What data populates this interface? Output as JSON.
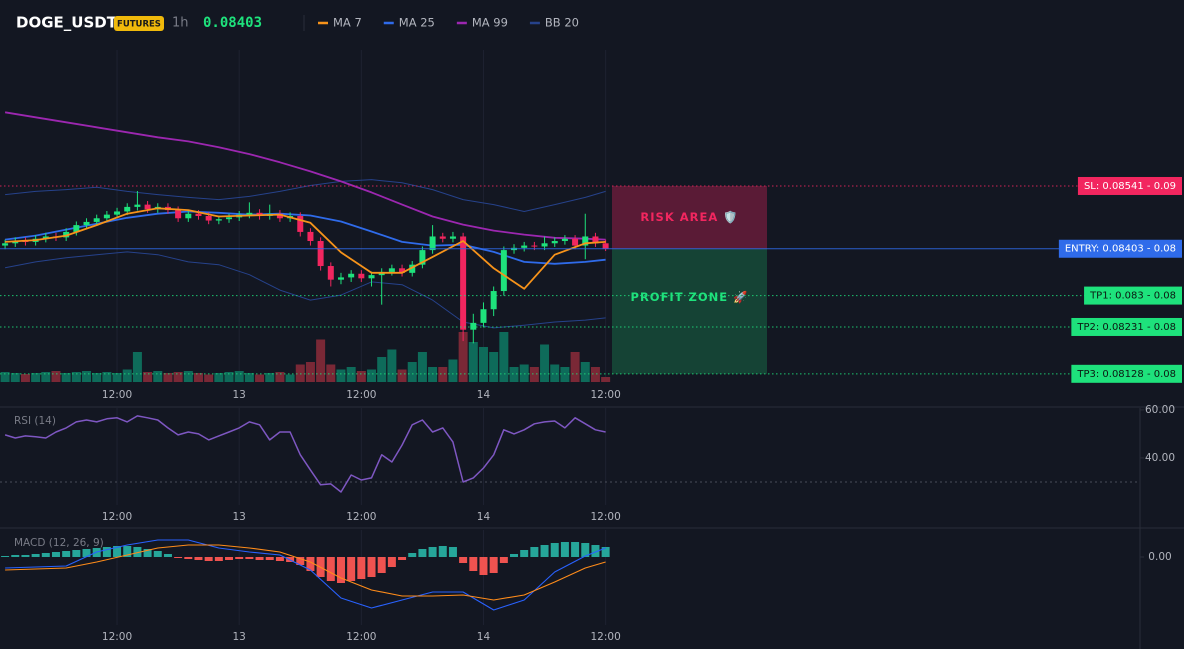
{
  "header": {
    "symbol": "DOGE_USDT",
    "badge": "FUTURES",
    "interval": "1h",
    "price": "0.08403"
  },
  "chart_data": [
    {
      "type": "candlestick",
      "x": [
        -23,
        -22,
        -21,
        -20,
        -19,
        -18,
        -17,
        -16,
        -15,
        -14,
        -13,
        -12,
        -11,
        -10,
        -9,
        -8,
        -7,
        -6,
        -5,
        -4,
        -3,
        -2,
        -1,
        0,
        1,
        2,
        3,
        4,
        5,
        6,
        7,
        8,
        9,
        10,
        11,
        12,
        13,
        14,
        15,
        16,
        17,
        18,
        19,
        20,
        21,
        22,
        23,
        24,
        25,
        26,
        27,
        28,
        29,
        30,
        31,
        32,
        33,
        34,
        35,
        36
      ],
      "open": [
        0.0841,
        0.08415,
        0.0842,
        0.08418,
        0.08425,
        0.0843,
        0.08428,
        0.0844,
        0.08455,
        0.08462,
        0.0847,
        0.08478,
        0.08485,
        0.08495,
        0.085,
        0.0849,
        0.08495,
        0.08488,
        0.0847,
        0.0848,
        0.08475,
        0.08465,
        0.08468,
        0.08472,
        0.08478,
        0.08482,
        0.08475,
        0.0848,
        0.0847,
        0.08475,
        0.0844,
        0.0842,
        0.08365,
        0.08335,
        0.0834,
        0.08348,
        0.08338,
        0.08345,
        0.08352,
        0.0836,
        0.0835,
        0.08368,
        0.084,
        0.0843,
        0.08425,
        0.0843,
        0.08225,
        0.0824,
        0.0827,
        0.0831,
        0.084,
        0.08405,
        0.0841,
        0.08408,
        0.08415,
        0.0842,
        0.08425,
        0.0841,
        0.0843,
        0.08415
      ],
      "high": [
        0.08423,
        0.08428,
        0.08428,
        0.08433,
        0.08438,
        0.08438,
        0.08448,
        0.08463,
        0.0847,
        0.08478,
        0.08486,
        0.08493,
        0.08503,
        0.0853,
        0.08508,
        0.08503,
        0.08503,
        0.08496,
        0.08488,
        0.08488,
        0.08483,
        0.08476,
        0.0848,
        0.08486,
        0.08505,
        0.0849,
        0.085,
        0.08488,
        0.08483,
        0.08483,
        0.08448,
        0.08428,
        0.08373,
        0.0835,
        0.08356,
        0.08356,
        0.08353,
        0.0836,
        0.08368,
        0.08368,
        0.08376,
        0.08408,
        0.08455,
        0.08438,
        0.0844,
        0.08438,
        0.0826,
        0.08285,
        0.0832,
        0.08408,
        0.08413,
        0.08418,
        0.08418,
        0.0843,
        0.08428,
        0.08433,
        0.08433,
        0.0848,
        0.08438,
        0.08423
      ],
      "low": [
        0.08402,
        0.08407,
        0.0841,
        0.0841,
        0.08417,
        0.0842,
        0.0842,
        0.08432,
        0.08447,
        0.08454,
        0.08462,
        0.0847,
        0.08477,
        0.08487,
        0.08482,
        0.08482,
        0.0848,
        0.08462,
        0.08462,
        0.08467,
        0.08457,
        0.08457,
        0.0846,
        0.08464,
        0.0847,
        0.08467,
        0.08467,
        0.08462,
        0.08462,
        0.0843,
        0.0841,
        0.08355,
        0.0832,
        0.08325,
        0.0833,
        0.0833,
        0.0832,
        0.0828,
        0.08344,
        0.08342,
        0.08342,
        0.0836,
        0.08392,
        0.08417,
        0.08417,
        0.082,
        0.08195,
        0.0823,
        0.08255,
        0.083,
        0.08392,
        0.08397,
        0.084,
        0.084,
        0.08407,
        0.08412,
        0.08402,
        0.0838,
        0.08407,
        0.08398
      ],
      "close": [
        0.08415,
        0.0842,
        0.08418,
        0.08425,
        0.0843,
        0.08428,
        0.0844,
        0.08455,
        0.08462,
        0.0847,
        0.08478,
        0.08485,
        0.08495,
        0.085,
        0.0849,
        0.08495,
        0.08488,
        0.0847,
        0.0848,
        0.08475,
        0.08465,
        0.08468,
        0.08472,
        0.08478,
        0.08482,
        0.08475,
        0.0848,
        0.0847,
        0.08475,
        0.0844,
        0.0842,
        0.08365,
        0.08335,
        0.0834,
        0.08348,
        0.08338,
        0.08345,
        0.08352,
        0.0836,
        0.0835,
        0.08368,
        0.084,
        0.0843,
        0.08425,
        0.0843,
        0.08225,
        0.0824,
        0.0827,
        0.0831,
        0.084,
        0.08405,
        0.0841,
        0.08408,
        0.08415,
        0.0842,
        0.08425,
        0.0841,
        0.0843,
        0.08415,
        0.08403
      ],
      "up_color": "#1ee27c",
      "down_color": "#f2265f",
      "volume": {
        "values": [
          20,
          18,
          16,
          18,
          20,
          22,
          18,
          20,
          22,
          18,
          20,
          18,
          25,
          60,
          20,
          22,
          18,
          20,
          22,
          18,
          15,
          18,
          20,
          22,
          18,
          15,
          18,
          20,
          15,
          35,
          40,
          85,
          35,
          25,
          30,
          22,
          25,
          50,
          65,
          25,
          40,
          60,
          30,
          30,
          45,
          100,
          80,
          70,
          60,
          100,
          30,
          35,
          30,
          75,
          35,
          30,
          60,
          40,
          30,
          10
        ],
        "ylim": [
          0,
          100
        ],
        "up_color": "#0e6b5a",
        "down_color": "#7a2836"
      },
      "xlim": [
        -23.5,
        88.5
      ],
      "ylim": [
        0.0811,
        0.0884
      ],
      "xticks": [
        {
          "value": -12,
          "label": "12:00"
        },
        {
          "value": 0,
          "label": "13"
        },
        {
          "value": 12,
          "label": "12:00"
        },
        {
          "value": 24,
          "label": "14"
        },
        {
          "value": 36,
          "label": "12:00"
        }
      ],
      "series": [
        {
          "name": "MA 7",
          "color": "#f7931a",
          "x": [
            -23,
            -20,
            -17,
            -14,
            -11,
            -8,
            -5,
            -2,
            1,
            4,
            7,
            10,
            13,
            16,
            19,
            22,
            25,
            28,
            31,
            34,
            36
          ],
          "values": [
            0.08418,
            0.08422,
            0.08432,
            0.08455,
            0.0848,
            0.08492,
            0.08488,
            0.08474,
            0.08476,
            0.08478,
            0.0846,
            0.08395,
            0.0835,
            0.0835,
            0.08385,
            0.0842,
            0.0836,
            0.08315,
            0.0839,
            0.08415,
            0.08418
          ]
        },
        {
          "name": "MA 25",
          "color": "#2f6bea",
          "x": [
            -23,
            -20,
            -17,
            -14,
            -11,
            -8,
            -5,
            -2,
            1,
            4,
            7,
            10,
            13,
            16,
            19,
            22,
            25,
            28,
            31,
            34,
            36
          ],
          "values": [
            0.08423,
            0.08432,
            0.08445,
            0.08458,
            0.08471,
            0.0848,
            0.08485,
            0.08482,
            0.08478,
            0.0848,
            0.08476,
            0.08463,
            0.08441,
            0.08418,
            0.0841,
            0.08412,
            0.08396,
            0.08374,
            0.0837,
            0.08374,
            0.08379
          ]
        },
        {
          "name": "MA 99",
          "color": "#9c27b0",
          "x": [
            -23,
            -20,
            -17,
            -14,
            -11,
            -8,
            -5,
            -2,
            1,
            4,
            7,
            10,
            13,
            16,
            19,
            22,
            25,
            28,
            31,
            34,
            36
          ],
          "values": [
            0.08703,
            0.08692,
            0.08681,
            0.0867,
            0.08659,
            0.08648,
            0.08639,
            0.08626,
            0.08611,
            0.08593,
            0.08573,
            0.08551,
            0.08527,
            0.085,
            0.08474,
            0.08456,
            0.08443,
            0.08434,
            0.08427,
            0.08425,
            0.08423
          ]
        }
      ],
      "bands": [
        {
          "name": "BB 20",
          "color": "#26428b",
          "x": [
            -23,
            -20,
            -17,
            -14,
            -11,
            -8,
            -5,
            -2,
            1,
            4,
            7,
            10,
            13,
            16,
            19,
            22,
            25,
            28,
            31,
            34,
            36
          ],
          "upper": [
            0.08522,
            0.08529,
            0.08533,
            0.08538,
            0.08529,
            0.08522,
            0.08516,
            0.08511,
            0.08518,
            0.08529,
            0.08542,
            0.08551,
            0.08555,
            0.08548,
            0.08533,
            0.08511,
            0.085,
            0.08485,
            0.085,
            0.08516,
            0.08529
          ],
          "lower": [
            0.08361,
            0.08374,
            0.08383,
            0.0839,
            0.08396,
            0.0839,
            0.08374,
            0.08368,
            0.08346,
            0.08312,
            0.0829,
            0.08301,
            0.0833,
            0.08324,
            0.0829,
            0.08242,
            0.08229,
            0.08235,
            0.08242,
            0.08246,
            0.08251
          ]
        }
      ],
      "levels": [
        {
          "label": "SL: 0.08541 - 0.09",
          "value": 0.08541,
          "color": "#f2265f",
          "text_color": "#ffffff"
        },
        {
          "label": "ENTRY: 0.08403 - 0.08",
          "value": 0.08403,
          "color": "#2f6bea",
          "text_color": "#ffffff"
        },
        {
          "label": "TP1: 0.083 - 0.08",
          "value": 0.083,
          "color": "#1ee27c",
          "text_color": "#0b1a12"
        },
        {
          "label": "TP2: 0.08231 - 0.08",
          "value": 0.08231,
          "color": "#1ee27c",
          "text_color": "#0b1a12"
        },
        {
          "label": "TP3: 0.08128 - 0.08",
          "value": 0.08128,
          "color": "#1ee27c",
          "text_color": "#0b1a12"
        }
      ],
      "zones": [
        {
          "label": "RISK AREA 🛡️",
          "color": "#f2265f"
        },
        {
          "label": "PROFIT ZONE 🚀",
          "color": "#1ee27c"
        }
      ]
    },
    {
      "type": "line",
      "title": "RSI (14)",
      "x": [
        -23,
        -22,
        -21,
        -20,
        -19,
        -18,
        -17,
        -16,
        -15,
        -14,
        -13,
        -12,
        -11,
        -10,
        -9,
        -8,
        -7,
        -6,
        -5,
        -4,
        -3,
        -2,
        -1,
        0,
        1,
        2,
        3,
        4,
        5,
        6,
        7,
        8,
        9,
        10,
        11,
        12,
        13,
        14,
        15,
        16,
        17,
        18,
        19,
        20,
        21,
        22,
        23,
        24,
        25,
        26,
        27,
        28,
        29,
        30,
        31,
        32,
        33,
        34,
        35,
        36
      ],
      "values": [
        49.6,
        48.3,
        49.2,
        48.8,
        48.3,
        50.8,
        52.5,
        55.0,
        55.8,
        55.0,
        56.3,
        56.7,
        55.0,
        57.5,
        56.7,
        55.8,
        52.5,
        49.6,
        50.8,
        50.0,
        47.5,
        49.2,
        50.8,
        52.5,
        55.0,
        53.8,
        47.5,
        50.8,
        50.8,
        41.3,
        35.0,
        28.8,
        29.2,
        25.8,
        32.9,
        30.8,
        31.7,
        41.3,
        38.3,
        45.4,
        53.8,
        55.8,
        50.8,
        52.5,
        46.7,
        30.0,
        31.7,
        35.8,
        41.3,
        51.7,
        50.0,
        51.7,
        54.2,
        55.0,
        55.4,
        52.5,
        56.7,
        54.2,
        51.7,
        50.8
      ],
      "color": "#7e57c2",
      "hlines": [
        30
      ],
      "xlim": [
        -23.5,
        88.5
      ],
      "ylim": [
        20.4,
        60.8
      ],
      "xticks": [
        {
          "value": -12,
          "label": "12:00"
        },
        {
          "value": 0,
          "label": "13"
        },
        {
          "value": 12,
          "label": "12:00"
        },
        {
          "value": 24,
          "label": "14"
        },
        {
          "value": 36,
          "label": "12:00"
        }
      ],
      "yticks": [
        {
          "value": 60,
          "label": "60.00"
        },
        {
          "value": 40,
          "label": "40.00"
        }
      ]
    },
    {
      "type": "macd",
      "title": "MACD (12, 26, 9)",
      "x": [
        -23,
        -22,
        -21,
        -20,
        -19,
        -18,
        -17,
        -16,
        -15,
        -14,
        -13,
        -12,
        -11,
        -10,
        -9,
        -8,
        -7,
        -6,
        -5,
        -4,
        -3,
        -2,
        -1,
        0,
        1,
        2,
        3,
        4,
        5,
        6,
        7,
        8,
        9,
        10,
        11,
        12,
        13,
        14,
        15,
        16,
        17,
        18,
        19,
        20,
        21,
        22,
        23,
        24,
        25,
        26,
        27,
        28,
        29,
        30,
        31,
        32,
        33,
        34,
        35,
        36
      ],
      "histogram": [
        1e-05,
        2e-05,
        2e-05,
        3e-05,
        4e-05,
        5e-05,
        6e-05,
        7e-05,
        8e-05,
        9e-05,
        0.0001,
        0.00011,
        0.00011,
        0.0001,
        8e-05,
        6e-05,
        3e-05,
        -1e-05,
        -2e-05,
        -3e-05,
        -4e-05,
        -4e-05,
        -3e-05,
        -2e-05,
        -2e-05,
        -3e-05,
        -3e-05,
        -4e-05,
        -5e-05,
        -8e-05,
        -0.00014,
        -0.0002,
        -0.00024,
        -0.00026,
        -0.00024,
        -0.00022,
        -0.0002,
        -0.00016,
        -0.0001,
        -3e-05,
        4e-05,
        8e-05,
        0.0001,
        0.00011,
        0.0001,
        -6e-05,
        -0.00014,
        -0.00018,
        -0.00016,
        -6e-05,
        3e-05,
        7e-05,
        0.0001,
        0.00012,
        0.00014,
        0.00015,
        0.00015,
        0.00014,
        0.00012,
        0.0001
      ],
      "up_color": "#26a69a",
      "down_color": "#ef5350",
      "series": [
        {
          "color": "#2962ff",
          "x": [
            -23,
            -20,
            -17,
            -14,
            -11,
            -8,
            -5,
            -2,
            1,
            4,
            7,
            10,
            13,
            16,
            19,
            22,
            25,
            28,
            31,
            34,
            36
          ],
          "values": [
            -0.00011,
            -0.0001,
            -9e-05,
            5e-05,
            0.00012,
            0.00017,
            0.00017,
            9e-05,
            5e-05,
            2e-05,
            -0.00013,
            -0.00041,
            -0.00051,
            -0.00043,
            -0.00035,
            -0.00035,
            -0.00053,
            -0.00043,
            -0.00015,
            1e-05,
            9e-05
          ]
        },
        {
          "color": "#ff8c1a",
          "x": [
            -23,
            -20,
            -17,
            -14,
            -11,
            -8,
            -5,
            -2,
            1,
            4,
            7,
            10,
            13,
            16,
            19,
            22,
            25,
            28,
            31,
            34,
            36
          ],
          "values": [
            -0.00013,
            -0.00012,
            -0.00011,
            -5e-05,
            2e-05,
            9e-05,
            0.00012,
            0.00012,
            9e-05,
            5e-05,
            -5e-05,
            -0.00021,
            -0.00033,
            -0.00039,
            -0.00039,
            -0.00038,
            -0.00043,
            -0.00038,
            -0.00025,
            -0.00011,
            -5e-05
          ]
        }
      ],
      "xlim": [
        -23.5,
        88.5
      ],
      "ylim": [
        -0.00068,
        0.00027
      ],
      "xticks": [
        {
          "value": -12,
          "label": "12:00"
        },
        {
          "value": 0,
          "label": "13"
        },
        {
          "value": 12,
          "label": "12:00"
        },
        {
          "value": 24,
          "label": "14"
        },
        {
          "value": 36,
          "label": "12:00"
        }
      ],
      "yticks": [
        {
          "value": 0,
          "label": "0.00"
        }
      ]
    }
  ]
}
